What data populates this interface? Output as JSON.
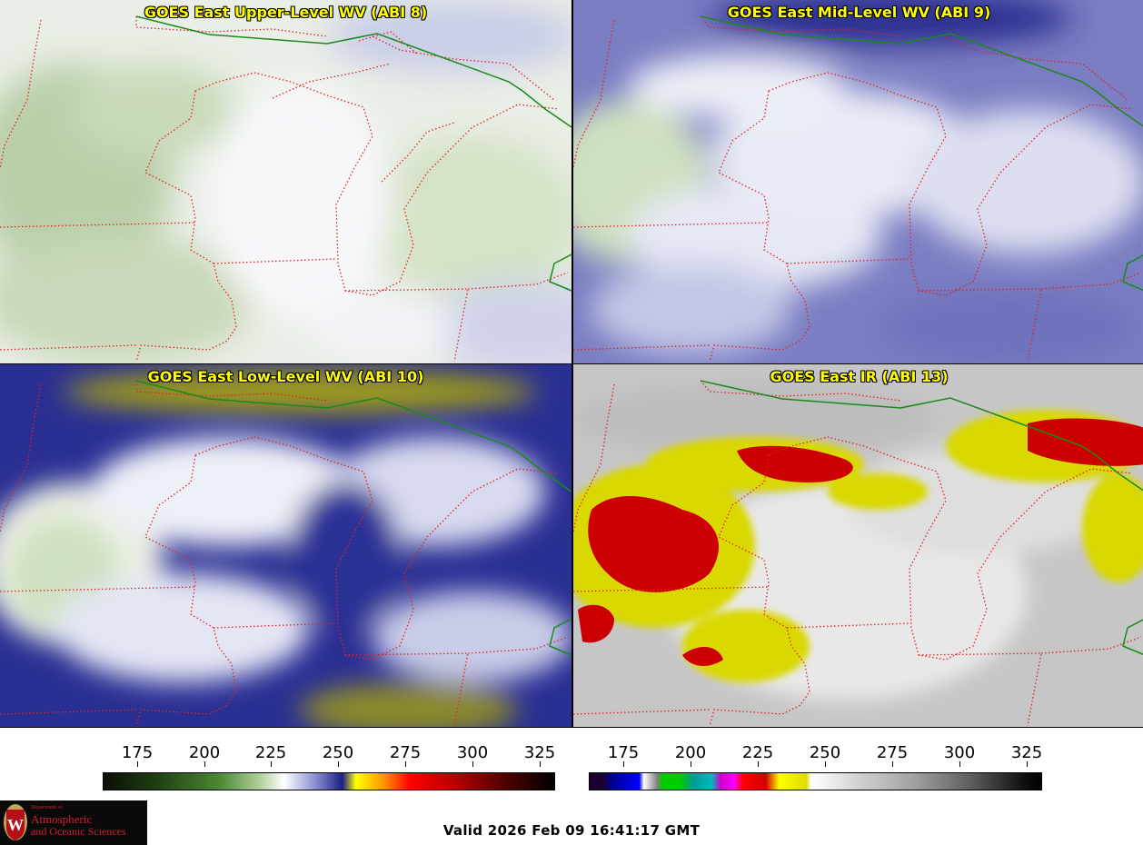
{
  "panels": [
    {
      "title": "GOES East Upper-Level WV (ABI 8)",
      "palette": "green-white-blue",
      "colors": [
        "#dfe7d6",
        "#ffffff",
        "#c5cbe6"
      ]
    },
    {
      "title": "GOES East Mid-Level WV (ABI 9)",
      "palette": "green-white-blue",
      "colors": [
        "#d5e2c9",
        "#ffffff",
        "#4a4ea8"
      ]
    },
    {
      "title": "GOES East Low-Level WV (ABI 10)",
      "palette": "green-white-blue-yellow",
      "colors": [
        "#dfe9d5",
        "#ffffff",
        "#1d2388",
        "#b8b400"
      ]
    },
    {
      "title": "GOES East IR (ABI 13)",
      "palette": "gray-yellow-red",
      "colors": [
        "#c8c8c8",
        "#f0f0f0",
        "#ffff00",
        "#d40000"
      ]
    }
  ],
  "colorbars": [
    {
      "ticks": [
        "175",
        "200",
        "225",
        "250",
        "275",
        "300",
        "325"
      ],
      "range": [
        160,
        330
      ]
    },
    {
      "ticks": [
        "175",
        "200",
        "225",
        "250",
        "275",
        "300",
        "325"
      ],
      "range": [
        160,
        330
      ]
    }
  ],
  "logo": {
    "line1": "Department of",
    "line2": "Atmospheric",
    "line3": "and Oceanic Sciences"
  },
  "valid_text": "Valid 2026 Feb 09 16:41:17 GMT",
  "colors": {
    "border": "#e62020",
    "intl_border": "#1a8a1a",
    "title_text": "#ffff00"
  }
}
